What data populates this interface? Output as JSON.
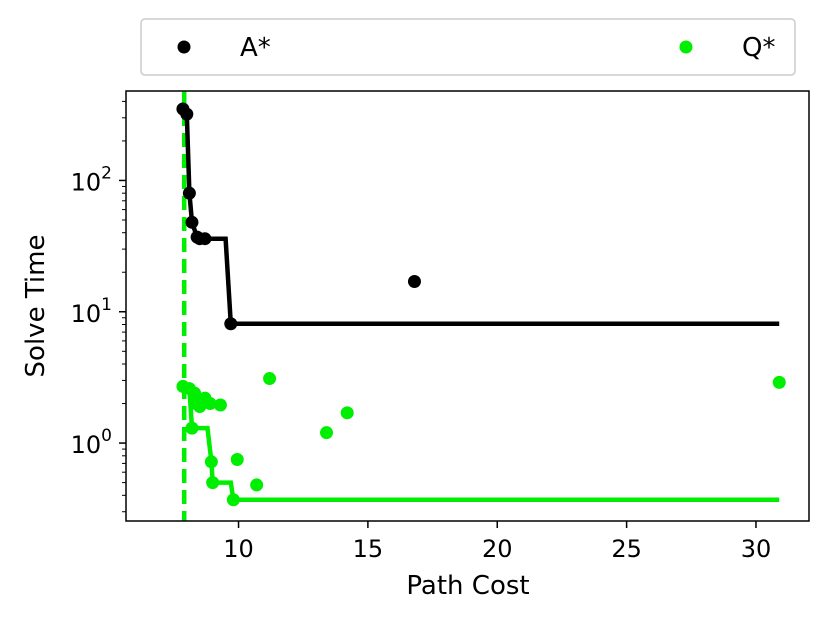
{
  "chart_data": {
    "type": "scatter",
    "xlabel": "Path Cost",
    "ylabel": "Solve Time",
    "yscale": "log",
    "xlim": [
      5.65,
      32.05
    ],
    "ylim": [
      0.255,
      480
    ],
    "xticks": [
      10,
      15,
      20,
      25,
      30
    ],
    "yticks": [
      {
        "value": 1,
        "base": "10",
        "exp": "0"
      },
      {
        "value": 10,
        "base": "10",
        "exp": "1"
      },
      {
        "value": 100,
        "base": "10",
        "exp": "2"
      }
    ],
    "legend": {
      "placement": "top",
      "columns": 2
    },
    "series": [
      {
        "name": "A*",
        "color": "#000000",
        "points": [
          [
            7.85,
            350
          ],
          [
            8.0,
            320
          ],
          [
            8.1,
            80
          ],
          [
            8.2,
            48
          ],
          [
            8.4,
            37
          ],
          [
            8.5,
            36
          ],
          [
            8.7,
            36
          ],
          [
            9.7,
            8.1
          ],
          [
            16.8,
            17
          ]
        ],
        "frontier": [
          [
            7.85,
            350
          ],
          [
            8.0,
            320
          ],
          [
            8.1,
            80
          ],
          [
            8.2,
            48
          ],
          [
            8.4,
            37
          ],
          [
            8.5,
            36
          ],
          [
            9.5,
            36
          ],
          [
            9.7,
            8.1
          ],
          [
            30.9,
            8.1
          ]
        ]
      },
      {
        "name": "Q*",
        "color": "#00ee00",
        "points": [
          [
            7.85,
            2.7
          ],
          [
            8.1,
            2.6
          ],
          [
            8.2,
            1.3
          ],
          [
            8.3,
            2.4
          ],
          [
            8.35,
            2.0
          ],
          [
            8.5,
            1.9
          ],
          [
            8.6,
            2.1
          ],
          [
            8.7,
            2.2
          ],
          [
            8.9,
            2.0
          ],
          [
            9.3,
            1.95
          ],
          [
            8.95,
            0.72
          ],
          [
            9.0,
            0.5
          ],
          [
            9.8,
            0.37
          ],
          [
            9.95,
            0.75
          ],
          [
            10.7,
            0.48
          ],
          [
            11.2,
            3.1
          ],
          [
            13.4,
            1.2
          ],
          [
            14.2,
            1.7
          ],
          [
            30.9,
            2.9
          ]
        ],
        "frontier": [
          [
            7.85,
            2.7
          ],
          [
            8.1,
            2.6
          ],
          [
            8.2,
            1.3
          ],
          [
            8.8,
            1.3
          ],
          [
            8.95,
            0.72
          ],
          [
            9.0,
            0.5
          ],
          [
            9.7,
            0.5
          ],
          [
            9.8,
            0.37
          ],
          [
            30.9,
            0.37
          ]
        ]
      }
    ],
    "reference_line": {
      "x": 7.9,
      "color": "#00ee00",
      "style": "dashed"
    }
  }
}
